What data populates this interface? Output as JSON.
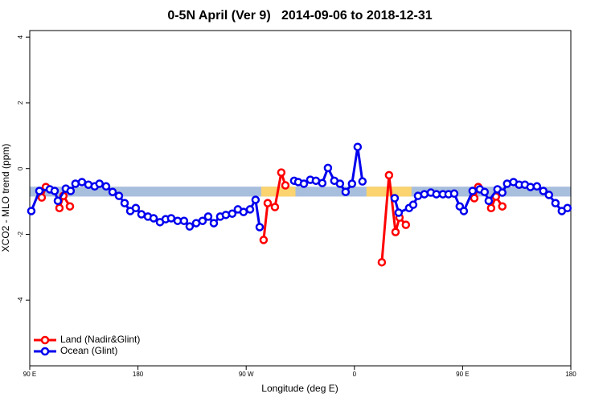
{
  "chart_data": {
    "type": "line",
    "title": "0-5N April (Ver 9)   2014-09-06 to 2018-12-31",
    "xlabel": "Longitude (deg E)",
    "ylabel": "XCO2 - MLO trend (ppm)",
    "xlim": [
      90,
      540
    ],
    "ylim": [
      -6,
      4.2
    ],
    "xticks": [
      {
        "value": 90,
        "label": "90 E"
      },
      180,
      {
        "value": 270,
        "label": "90 W"
      },
      {
        "value": 360,
        "label": "0"
      },
      {
        "value": 450,
        "label": "90 E"
      },
      {
        "value": 540,
        "label": "180"
      }
    ],
    "yticks": [
      -4,
      -2,
      0,
      2,
      4
    ],
    "legend": "bottom-left",
    "bands": [
      {
        "x": [
          90,
          540
        ],
        "y": [
          -0.85,
          -0.55
        ],
        "color": "#a8bedd"
      },
      {
        "x": [
          282.5,
          311
        ],
        "y": [
          -0.85,
          -0.55
        ],
        "color": "#fbd36f"
      },
      {
        "x": [
          370,
          407.5
        ],
        "y": [
          -0.85,
          -0.55
        ],
        "color": "#fbd36f"
      }
    ],
    "series": [
      {
        "name": "Land (Nadir&Glint)",
        "color": "#ff0000",
        "x": [
          100,
          103.4,
          null,
          114.7,
          118,
          123.4,
          null,
          284.5,
          287.9,
          293.9,
          299.2,
          302.6,
          null,
          382.8,
          388.8,
          394.2,
          397.5,
          402.8,
          null,
          459.7,
          463,
          null,
          473.7,
          477.7,
          483
        ],
        "values": [
          -0.88,
          -0.56,
          null,
          -1.2,
          -0.83,
          -1.15,
          null,
          -2.17,
          -1.05,
          -1.17,
          -0.12,
          -0.51,
          null,
          -2.85,
          -0.2,
          -1.93,
          -1.49,
          -1.71,
          null,
          -0.9,
          -0.56,
          null,
          -1.2,
          -0.85,
          -1.15
        ]
      },
      {
        "name": "Ocean (Glint)",
        "color": "#0000ee",
        "x": [
          91.3,
          98,
          106.7,
          110.7,
          113.4,
          120,
          124,
          128,
          133.4,
          138.8,
          144,
          148,
          153.5,
          158.9,
          164.2,
          168.9,
          173.6,
          178.2,
          182.9,
          188.3,
          193,
          198.3,
          203,
          207.6,
          213,
          218.3,
          223,
          228.4,
          233.7,
          238.4,
          243.1,
          248.4,
          253.1,
          258.4,
          263.1,
          267.8,
          273.2,
          277.8,
          281.2,
          null,
          309.9,
          313.3,
          318,
          323.3,
          328,
          333.3,
          338,
          343.3,
          348,
          352.7,
          358,
          362.7,
          366.7,
          null,
          393.5,
          396.8,
          405.5,
          408.9,
          412.9,
          418.2,
          423.6,
          428.2,
          433.6,
          438.3,
          443,
          447.6,
          451,
          458.3,
          464.3,
          468.3,
          471.7,
          479,
          483,
          487,
          492.3,
          497,
          501.8,
          506.4,
          511.8,
          517.1,
          521.8,
          527.2,
          532.5,
          537.2
        ],
        "values": [
          -1.29,
          -0.68,
          -0.63,
          -0.68,
          -0.98,
          -0.61,
          -0.68,
          -0.46,
          -0.41,
          -0.49,
          -0.54,
          -0.46,
          -0.54,
          -0.71,
          -0.83,
          -1.05,
          -1.29,
          -1.2,
          -1.39,
          -1.46,
          -1.51,
          -1.63,
          -1.54,
          -1.51,
          -1.59,
          -1.59,
          -1.76,
          -1.66,
          -1.59,
          -1.46,
          -1.66,
          -1.46,
          -1.41,
          -1.37,
          -1.24,
          -1.32,
          -1.24,
          -0.95,
          -1.78,
          null,
          -0.37,
          -0.41,
          -0.46,
          -0.34,
          -0.37,
          -0.44,
          0.02,
          -0.37,
          -0.46,
          -0.71,
          -0.46,
          0.66,
          -0.39,
          null,
          -0.9,
          -1.34,
          -1.2,
          -1.1,
          -0.83,
          -0.78,
          -0.73,
          -0.78,
          -0.78,
          -0.78,
          -0.76,
          -1.15,
          -1.29,
          -0.68,
          -0.63,
          -0.71,
          -0.98,
          -0.63,
          -0.73,
          -0.46,
          -0.41,
          -0.49,
          -0.49,
          -0.56,
          -0.54,
          -0.68,
          -0.8,
          -1.05,
          -1.29,
          -1.2
        ]
      }
    ]
  }
}
